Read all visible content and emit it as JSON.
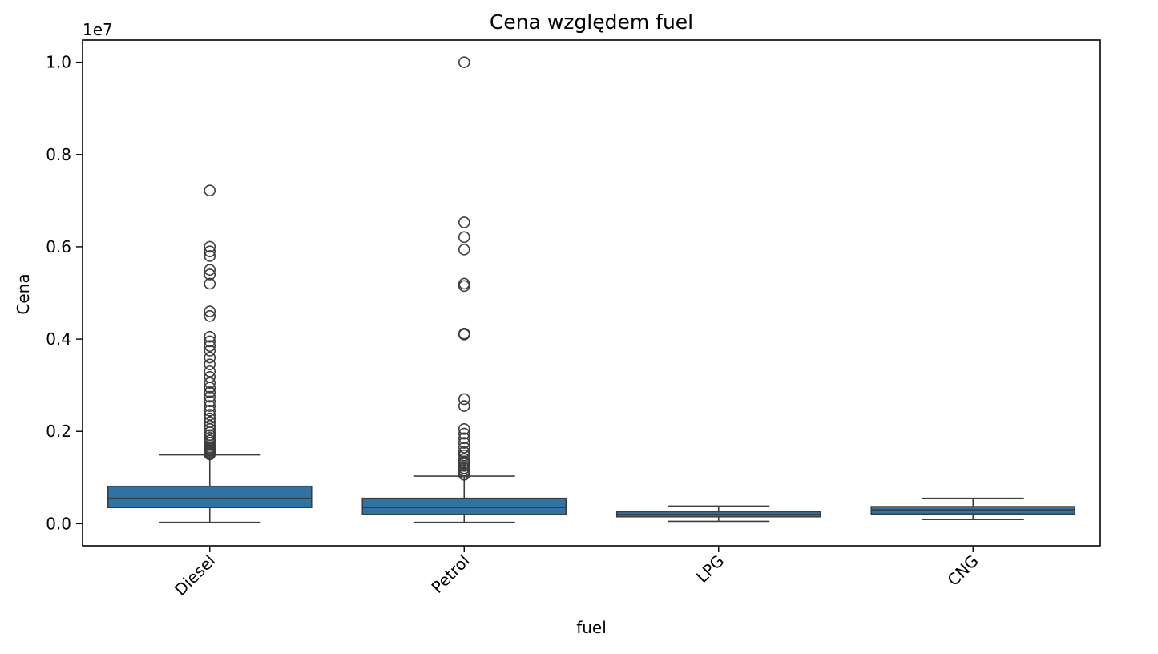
{
  "chart_data": {
    "type": "box",
    "title": "Cena względem fuel",
    "xlabel": "fuel",
    "ylabel": "Cena",
    "y_offset_label": "1e7",
    "ylim": [
      -0.048,
      1.048
    ],
    "yticks": [
      0.0,
      0.2,
      0.4,
      0.6,
      0.8,
      1.0
    ],
    "ytick_labels": [
      "0.0",
      "0.2",
      "0.4",
      "0.6",
      "0.8",
      "1.0"
    ],
    "categories": [
      "Diesel",
      "Petrol",
      "LPG",
      "CNG"
    ],
    "grid": false,
    "legend": "none",
    "colors": {
      "box_fill": "#2f72a4",
      "edge": "#3d3d3d"
    },
    "boxes": [
      {
        "category": "Diesel",
        "whisker_low": 0.003,
        "q1": 0.035,
        "median": 0.055,
        "q3": 0.081,
        "whisker_high": 0.149,
        "outliers": [
          0.15,
          0.152,
          0.155,
          0.158,
          0.16,
          0.163,
          0.166,
          0.17,
          0.175,
          0.18,
          0.186,
          0.192,
          0.198,
          0.205,
          0.212,
          0.22,
          0.228,
          0.236,
          0.245,
          0.255,
          0.265,
          0.275,
          0.285,
          0.295,
          0.305,
          0.318,
          0.33,
          0.345,
          0.36,
          0.375,
          0.385,
          0.395,
          0.405,
          0.45,
          0.46,
          0.52,
          0.54,
          0.55,
          0.58,
          0.59,
          0.6,
          0.722
        ]
      },
      {
        "category": "Petrol",
        "whisker_low": 0.003,
        "q1": 0.02,
        "median": 0.035,
        "q3": 0.055,
        "whisker_high": 0.103,
        "outliers": [
          0.106,
          0.11,
          0.115,
          0.12,
          0.125,
          0.13,
          0.135,
          0.14,
          0.148,
          0.155,
          0.165,
          0.175,
          0.185,
          0.195,
          0.205,
          0.255,
          0.27,
          0.41,
          0.412,
          0.515,
          0.52,
          0.594,
          0.621,
          0.653,
          1.0
        ]
      },
      {
        "category": "LPG",
        "whisker_low": 0.005,
        "q1": 0.015,
        "median": 0.02,
        "q3": 0.026,
        "whisker_high": 0.038,
        "outliers": []
      },
      {
        "category": "CNG",
        "whisker_low": 0.009,
        "q1": 0.021,
        "median": 0.03,
        "q3": 0.037,
        "whisker_high": 0.055,
        "outliers": []
      }
    ]
  }
}
